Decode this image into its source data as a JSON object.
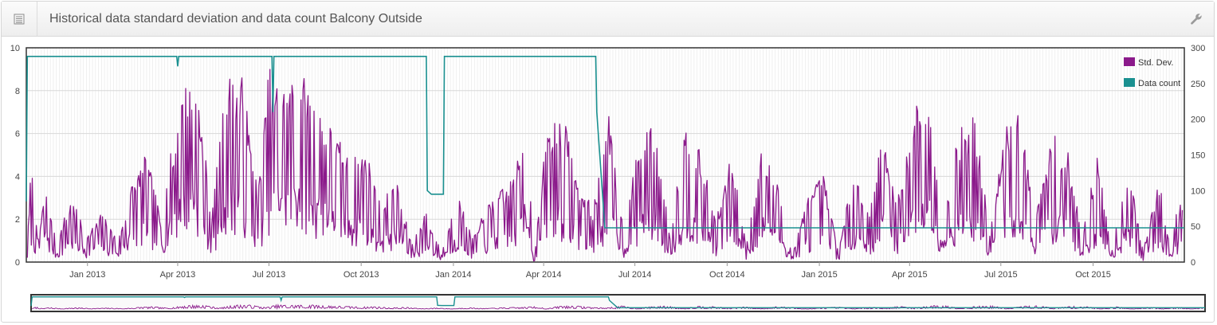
{
  "panel": {
    "title": "Historical data standard deviation and data count Balcony Outside",
    "icons": {
      "left": "table-icon",
      "right": "wrench-icon"
    }
  },
  "chart_data": {
    "type": "line",
    "title": "",
    "x_type": "date",
    "x_range": [
      "2012-11-01",
      "2015-12-31"
    ],
    "x_ticks": [
      "Jan 2013",
      "Apr 2013",
      "Jul 2013",
      "Oct 2013",
      "Jan 2014",
      "Apr 2014",
      "Jul 2014",
      "Oct 2014",
      "Jan 2015",
      "Apr 2015",
      "Jul 2015",
      "Oct 2015"
    ],
    "y_left": {
      "min": 0,
      "max": 10,
      "ticks": [
        0,
        2,
        4,
        6,
        8,
        10
      ]
    },
    "y_right": {
      "min": 0,
      "max": 300,
      "ticks": [
        0,
        50,
        100,
        150,
        200,
        250,
        300
      ]
    },
    "grid": "vertical daily lines, horizontal major lines",
    "legend": {
      "placement": "top-right",
      "items": [
        {
          "name": "Std. Dev.",
          "color": "#8b1a8b"
        },
        {
          "name": "Data count",
          "color": "#1a9090"
        }
      ]
    },
    "series": [
      {
        "name": "Std. Dev.",
        "axis": "left",
        "color": "#8b1a8b",
        "values": [
          [
            "2012-11-02",
            0.7
          ],
          [
            "2012-11-06",
            4.4
          ],
          [
            "2012-11-12",
            1.0
          ],
          [
            "2012-11-20",
            3.2
          ],
          [
            "2012-12-01",
            0.8
          ],
          [
            "2012-12-15",
            2.8
          ],
          [
            "2013-01-01",
            1.2
          ],
          [
            "2013-01-15",
            2.1
          ],
          [
            "2013-02-01",
            1.0
          ],
          [
            "2013-02-15",
            3.6
          ],
          [
            "2013-03-01",
            4.6
          ],
          [
            "2013-03-15",
            1.9
          ],
          [
            "2013-04-05",
            7.6
          ],
          [
            "2013-04-20",
            8.0
          ],
          [
            "2013-05-05",
            2.0
          ],
          [
            "2013-05-20",
            8.1
          ],
          [
            "2013-06-05",
            7.9
          ],
          [
            "2013-06-20",
            3.0
          ],
          [
            "2013-07-01",
            8.3
          ],
          [
            "2013-07-15",
            7.7
          ],
          [
            "2013-08-01",
            8.2
          ],
          [
            "2013-08-20",
            6.7
          ],
          [
            "2013-09-05",
            5.6
          ],
          [
            "2013-09-20",
            4.3
          ],
          [
            "2013-10-05",
            5.0
          ],
          [
            "2013-10-20",
            2.5
          ],
          [
            "2013-11-05",
            3.5
          ],
          [
            "2013-11-20",
            0.8
          ],
          [
            "2013-12-05",
            2.2
          ],
          [
            "2013-12-20",
            0.4
          ],
          [
            "2014-01-05",
            3.0
          ],
          [
            "2014-01-20",
            1.0
          ],
          [
            "2014-02-05",
            2.5
          ],
          [
            "2014-02-20",
            3.2
          ],
          [
            "2014-03-05",
            4.0
          ],
          [
            "2014-03-15",
            6.9
          ],
          [
            "2014-03-22",
            0.0
          ],
          [
            "2014-04-05",
            6.0
          ],
          [
            "2014-04-20",
            6.4
          ],
          [
            "2014-05-05",
            3.6
          ],
          [
            "2014-05-20",
            2.3
          ],
          [
            "2014-06-05",
            6.2
          ],
          [
            "2014-06-20",
            1.3
          ],
          [
            "2014-07-05",
            5.2
          ],
          [
            "2014-07-20",
            5.9
          ],
          [
            "2014-08-05",
            1.2
          ],
          [
            "2014-08-20",
            6.0
          ],
          [
            "2014-09-05",
            4.6
          ],
          [
            "2014-09-20",
            1.8
          ],
          [
            "2014-10-05",
            4.6
          ],
          [
            "2014-10-20",
            0.8
          ],
          [
            "2014-11-05",
            5.0
          ],
          [
            "2014-11-20",
            3.4
          ],
          [
            "2014-12-05",
            0.3
          ],
          [
            "2014-12-20",
            2.8
          ],
          [
            "2015-01-05",
            3.8
          ],
          [
            "2015-01-20",
            0.5
          ],
          [
            "2015-02-05",
            4.1
          ],
          [
            "2015-02-20",
            2.0
          ],
          [
            "2015-03-05",
            5.6
          ],
          [
            "2015-03-20",
            2.6
          ],
          [
            "2015-04-05",
            6.8
          ],
          [
            "2015-04-20",
            6.8
          ],
          [
            "2015-05-05",
            2.0
          ],
          [
            "2015-05-20",
            5.7
          ],
          [
            "2015-06-05",
            6.2
          ],
          [
            "2015-06-20",
            1.2
          ],
          [
            "2015-07-05",
            5.8
          ],
          [
            "2015-07-20",
            6.3
          ],
          [
            "2015-08-05",
            2.0
          ],
          [
            "2015-08-20",
            5.5
          ],
          [
            "2015-09-05",
            4.9
          ],
          [
            "2015-09-20",
            1.2
          ],
          [
            "2015-10-05",
            4.5
          ],
          [
            "2015-10-20",
            0.6
          ],
          [
            "2015-11-05",
            4.3
          ],
          [
            "2015-11-20",
            0.4
          ],
          [
            "2015-12-05",
            3.7
          ],
          [
            "2015-12-15",
            1.2
          ],
          [
            "2015-12-28",
            2.6
          ]
        ]
      },
      {
        "name": "Data count",
        "axis": "right",
        "color": "#1a9090",
        "values": [
          [
            "2012-11-01",
            85
          ],
          [
            "2012-11-02",
            288
          ],
          [
            "2013-03-31",
            288
          ],
          [
            "2013-04-01",
            274
          ],
          [
            "2013-04-02",
            288
          ],
          [
            "2013-07-04",
            288
          ],
          [
            "2013-07-05",
            210
          ],
          [
            "2013-07-06",
            288
          ],
          [
            "2013-12-05",
            288
          ],
          [
            "2013-12-06",
            100
          ],
          [
            "2013-12-10",
            95
          ],
          [
            "2013-12-22",
            95
          ],
          [
            "2013-12-23",
            288
          ],
          [
            "2014-05-23",
            288
          ],
          [
            "2014-05-24",
            210
          ],
          [
            "2014-06-01",
            48
          ],
          [
            "2015-11-30",
            48
          ],
          [
            "2015-12-31",
            48
          ]
        ]
      }
    ],
    "navigator": {
      "range": [
        "2012-11-01",
        "2015-12-31"
      ],
      "series": [
        "Std. Dev.",
        "Data count"
      ]
    }
  }
}
